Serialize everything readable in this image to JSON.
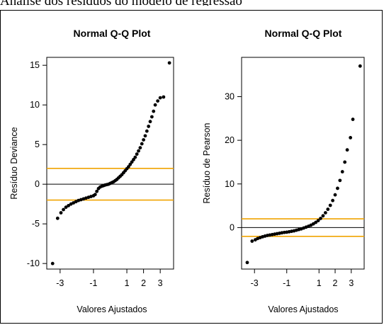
{
  "header_text": "Análise dos resíduos do modelo de regressão",
  "chart_data": [
    {
      "type": "scatter",
      "title": "Normal Q-Q Plot",
      "xlabel": "Valores Ajustados",
      "ylabel": "Resíduo Deviance",
      "xlim": [
        -3.8,
        3.8
      ],
      "ylim": [
        -10.7,
        16.0
      ],
      "x_ticks": [
        -3,
        -1,
        1,
        2,
        3
      ],
      "y_ticks": [
        -10,
        -5,
        0,
        5,
        10,
        15
      ],
      "hlines": [
        {
          "y": 2,
          "color": "#f0a400"
        },
        {
          "y": -2,
          "color": "#f0a400"
        },
        {
          "y": 0,
          "color": "#000000"
        }
      ],
      "points": [
        [
          -3.45,
          -10.0
        ],
        [
          -3.15,
          -4.3
        ],
        [
          -2.95,
          -3.6
        ],
        [
          -2.8,
          -3.2
        ],
        [
          -2.65,
          -2.9
        ],
        [
          -2.5,
          -2.7
        ],
        [
          -2.35,
          -2.5
        ],
        [
          -2.2,
          -2.35
        ],
        [
          -2.05,
          -2.2
        ],
        [
          -1.9,
          -2.05
        ],
        [
          -1.75,
          -1.95
        ],
        [
          -1.6,
          -1.85
        ],
        [
          -1.45,
          -1.75
        ],
        [
          -1.3,
          -1.65
        ],
        [
          -1.15,
          -1.55
        ],
        [
          -1.0,
          -1.45
        ],
        [
          -0.9,
          -1.3
        ],
        [
          -0.8,
          -0.9
        ],
        [
          -0.7,
          -0.55
        ],
        [
          -0.6,
          -0.35
        ],
        [
          -0.5,
          -0.25
        ],
        [
          -0.4,
          -0.18
        ],
        [
          -0.3,
          -0.1
        ],
        [
          -0.2,
          -0.05
        ],
        [
          -0.1,
          0.0
        ],
        [
          0.0,
          0.1
        ],
        [
          0.1,
          0.2
        ],
        [
          0.2,
          0.3
        ],
        [
          0.3,
          0.45
        ],
        [
          0.4,
          0.6
        ],
        [
          0.5,
          0.8
        ],
        [
          0.6,
          1.0
        ],
        [
          0.7,
          1.2
        ],
        [
          0.8,
          1.45
        ],
        [
          0.9,
          1.7
        ],
        [
          1.0,
          1.95
        ],
        [
          1.1,
          2.2
        ],
        [
          1.2,
          2.5
        ],
        [
          1.3,
          2.8
        ],
        [
          1.4,
          3.1
        ],
        [
          1.5,
          3.4
        ],
        [
          1.6,
          3.8
        ],
        [
          1.7,
          4.2
        ],
        [
          1.8,
          4.6
        ],
        [
          1.9,
          5.1
        ],
        [
          2.0,
          5.6
        ],
        [
          2.1,
          6.1
        ],
        [
          2.2,
          6.7
        ],
        [
          2.3,
          7.3
        ],
        [
          2.4,
          7.9
        ],
        [
          2.5,
          8.5
        ],
        [
          2.6,
          9.2
        ],
        [
          2.7,
          10.0
        ],
        [
          2.85,
          10.5
        ],
        [
          3.0,
          10.9
        ],
        [
          3.2,
          11.0
        ],
        [
          3.55,
          15.3
        ]
      ]
    },
    {
      "type": "scatter",
      "title": "Normal Q-Q Plot",
      "xlabel": "Valores Ajustados",
      "ylabel": "Resíduo de Pearson",
      "xlim": [
        -3.8,
        3.8
      ],
      "ylim": [
        -9.5,
        39.0
      ],
      "x_ticks": [
        -3,
        -1,
        1,
        2,
        3
      ],
      "y_ticks": [
        0,
        10,
        20,
        30
      ],
      "hlines": [
        {
          "y": 2,
          "color": "#f0a400"
        },
        {
          "y": -2,
          "color": "#f0a400"
        },
        {
          "y": 0,
          "color": "#000000"
        }
      ],
      "points": [
        [
          -3.45,
          -8.0
        ],
        [
          -3.15,
          -3.1
        ],
        [
          -2.95,
          -2.8
        ],
        [
          -2.8,
          -2.5
        ],
        [
          -2.65,
          -2.3
        ],
        [
          -2.5,
          -2.1
        ],
        [
          -2.35,
          -1.95
        ],
        [
          -2.2,
          -1.8
        ],
        [
          -2.05,
          -1.7
        ],
        [
          -1.9,
          -1.6
        ],
        [
          -1.75,
          -1.5
        ],
        [
          -1.6,
          -1.4
        ],
        [
          -1.45,
          -1.3
        ],
        [
          -1.3,
          -1.2
        ],
        [
          -1.15,
          -1.1
        ],
        [
          -1.0,
          -1.05
        ],
        [
          -0.85,
          -0.95
        ],
        [
          -0.7,
          -0.85
        ],
        [
          -0.55,
          -0.75
        ],
        [
          -0.4,
          -0.6
        ],
        [
          -0.25,
          -0.45
        ],
        [
          -0.1,
          -0.3
        ],
        [
          0.05,
          -0.1
        ],
        [
          0.2,
          0.1
        ],
        [
          0.35,
          0.3
        ],
        [
          0.5,
          0.55
        ],
        [
          0.65,
          0.85
        ],
        [
          0.8,
          1.2
        ],
        [
          0.95,
          1.6
        ],
        [
          1.1,
          2.1
        ],
        [
          1.25,
          2.7
        ],
        [
          1.4,
          3.4
        ],
        [
          1.55,
          4.2
        ],
        [
          1.7,
          5.1
        ],
        [
          1.85,
          6.2
        ],
        [
          2.0,
          7.5
        ],
        [
          2.15,
          9.0
        ],
        [
          2.3,
          10.8
        ],
        [
          2.45,
          12.8
        ],
        [
          2.6,
          15.0
        ],
        [
          2.75,
          17.8
        ],
        [
          2.95,
          20.6
        ],
        [
          3.1,
          24.8
        ],
        [
          3.55,
          37.0
        ]
      ]
    }
  ]
}
